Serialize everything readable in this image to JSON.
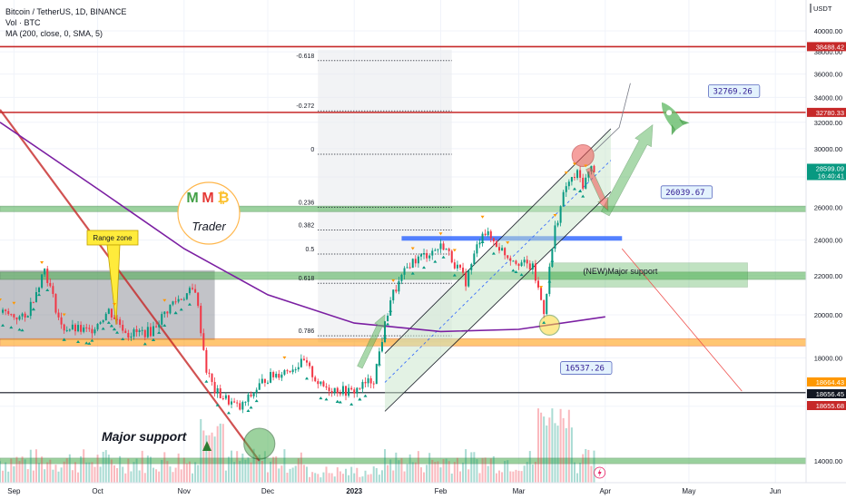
{
  "header": {
    "symbol_title": "Bitcoin / TetherUS, 1D, BINANCE",
    "indicator_volume": "Vol · BTC",
    "indicator_ma": "MA (200, close, 0, SMA, 5)"
  },
  "colors": {
    "candle_up": "#089981",
    "candle_down": "#f23645",
    "resistance_line": "#c62828",
    "support_zone": "#4caf50",
    "support_zone_orange": "#ff9800",
    "support_blue": "#2962ff",
    "ma_line": "#7b1fa2",
    "channel_fill": "#c8e6c9",
    "range_box": "#787b86",
    "callout_yellow": "#ffeb3b",
    "price_label_bg": "#d1d4dc"
  },
  "chart_data": {
    "type": "candlestick",
    "x_axis_labels": [
      "Sep",
      "Oct",
      "Nov",
      "Dec",
      "2023",
      "Feb",
      "Mar",
      "Apr",
      "May",
      "Jun"
    ],
    "y_axis": {
      "scale": "log",
      "unit_label": "USDT",
      "ticks": [
        40000,
        38000,
        36000,
        34000,
        32000,
        30000,
        28000,
        26000,
        24000,
        22000,
        20000,
        18000,
        16000,
        14000
      ],
      "tick_labels": [
        "40000.00",
        "38000.00",
        "36000.00",
        "34000.00",
        "32000.00",
        "30000.00",
        "28000.00",
        "26000.00",
        "24000.00",
        "22000.00",
        "20000.00",
        "18000.00",
        "16000.00",
        "14000.00"
      ],
      "range": [
        13600,
        45000
      ]
    },
    "price_path": [
      {
        "date": "2022-08-27",
        "close": 20100
      },
      {
        "date": "2022-09-05",
        "close": 19800
      },
      {
        "date": "2022-09-12",
        "close": 22400
      },
      {
        "date": "2022-09-18",
        "close": 19400
      },
      {
        "date": "2022-09-28",
        "close": 19200
      },
      {
        "date": "2022-10-05",
        "close": 20200
      },
      {
        "date": "2022-10-12",
        "close": 19100
      },
      {
        "date": "2022-10-20",
        "close": 19200
      },
      {
        "date": "2022-10-28",
        "close": 20600
      },
      {
        "date": "2022-11-05",
        "close": 21300
      },
      {
        "date": "2022-11-09",
        "close": 17500
      },
      {
        "date": "2022-11-12",
        "close": 16600
      },
      {
        "date": "2022-11-21",
        "close": 15900
      },
      {
        "date": "2022-11-30",
        "close": 17100
      },
      {
        "date": "2022-12-14",
        "close": 17800
      },
      {
        "date": "2022-12-20",
        "close": 16800
      },
      {
        "date": "2022-12-31",
        "close": 16550
      },
      {
        "date": "2023-01-08",
        "close": 17100
      },
      {
        "date": "2023-01-14",
        "close": 20800
      },
      {
        "date": "2023-01-21",
        "close": 22700
      },
      {
        "date": "2023-02-02",
        "close": 23700
      },
      {
        "date": "2023-02-10",
        "close": 21700
      },
      {
        "date": "2023-02-16",
        "close": 24600
      },
      {
        "date": "2023-02-25",
        "close": 23100
      },
      {
        "date": "2023-03-06",
        "close": 22400
      },
      {
        "date": "2023-03-10",
        "close": 20200
      },
      {
        "date": "2023-03-14",
        "close": 24700
      },
      {
        "date": "2023-03-18",
        "close": 27400
      },
      {
        "date": "2023-03-22",
        "close": 28200
      },
      {
        "date": "2023-03-24",
        "close": 27500
      },
      {
        "date": "2023-03-27",
        "close": 28599
      }
    ],
    "volume_profile": "histogram along bottom, spikes in Nov 2022 and Mar 2023",
    "horizontal_levels": [
      {
        "price": 38488.42,
        "label": "38488.42",
        "style": "resistance"
      },
      {
        "price": 32780.33,
        "label": "32780.33",
        "style": "resistance"
      },
      {
        "price": 25900,
        "style": "support_zone"
      },
      {
        "price": 24100,
        "style": "support_blue"
      },
      {
        "price": 22000,
        "style": "support_zone"
      },
      {
        "price": 18700,
        "style": "support_zone_orange"
      },
      {
        "price": 16537,
        "style": "dark_line"
      },
      {
        "price": 14000,
        "style": "support_zone"
      }
    ],
    "fib_levels": [
      {
        "ratio": "-0.618",
        "price": 37200
      },
      {
        "ratio": "-0.272",
        "price": 32900
      },
      {
        "ratio": "0",
        "price": 29600
      },
      {
        "ratio": "0.236",
        "price": 26000
      },
      {
        "ratio": "0.382",
        "price": 24600
      },
      {
        "ratio": "0.5",
        "price": 23200
      },
      {
        "ratio": "0.618",
        "price": 21600
      },
      {
        "ratio": "0.786",
        "price": 19000
      }
    ],
    "ma_200_path": [
      {
        "date": "2022-08-27",
        "value": 32000
      },
      {
        "date": "2022-10-01",
        "value": 27200
      },
      {
        "date": "2022-11-01",
        "value": 23500
      },
      {
        "date": "2022-12-01",
        "value": 21000
      },
      {
        "date": "2023-01-01",
        "value": 19600
      },
      {
        "date": "2023-02-01",
        "value": 19200
      },
      {
        "date": "2023-03-01",
        "value": 19300
      },
      {
        "date": "2023-04-01",
        "value": 19900
      }
    ],
    "right_axis_labels": [
      {
        "price": 38488.42,
        "text": "38488.42",
        "bg": "#c62828"
      },
      {
        "price": 32780.33,
        "text": "32780.33",
        "bg": "#c62828"
      },
      {
        "price": 28599.09,
        "text": "28599.09",
        "bg": "#089981",
        "sub": "16:40:41"
      },
      {
        "price": 18664.43,
        "text": "18664.43",
        "bg": "#ff9800"
      },
      {
        "price": 18656.45,
        "text": "18656.45",
        "bg": "#131722"
      },
      {
        "price": 18655.68,
        "text": "18655.68",
        "bg": "#c62828"
      }
    ]
  },
  "annotations": {
    "range_zone_label": "Range zone",
    "major_support_label": "Major support",
    "new_major_support_label": "(NEW)Major support",
    "target_label_1": "32769.26",
    "target_label_2": "26039.67",
    "low_label": "16537.26",
    "logo_mmb": "M M ₿",
    "logo_trader": "Trader"
  },
  "axis": {
    "currency": "USDT"
  }
}
